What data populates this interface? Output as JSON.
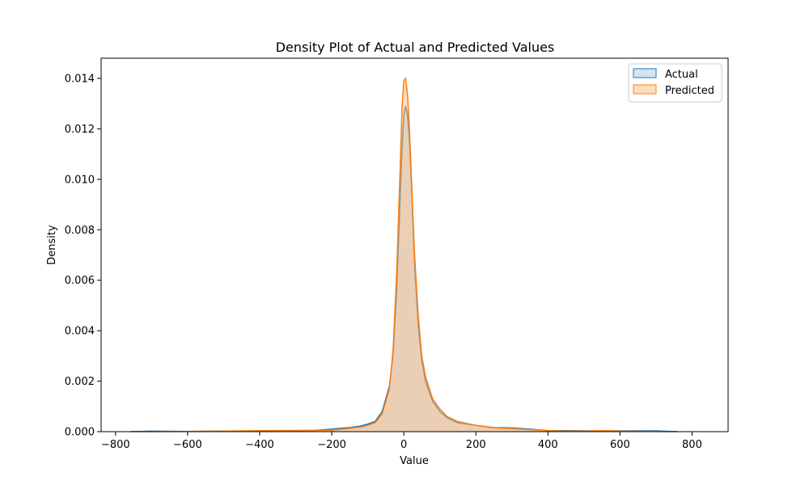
{
  "chart_data": {
    "type": "area",
    "title": "Density Plot of Actual and Predicted Values",
    "xlabel": "Value",
    "ylabel": "Density",
    "xlim": [
      -840,
      900
    ],
    "ylim": [
      0,
      0.0148
    ],
    "xticks": [
      -800,
      -600,
      -400,
      -200,
      0,
      200,
      400,
      600,
      800
    ],
    "xtick_labels": [
      "−800",
      "−600",
      "−400",
      "−200",
      "0",
      "200",
      "400",
      "600",
      "800"
    ],
    "yticks": [
      0,
      0.002,
      0.004,
      0.006,
      0.008,
      0.01,
      0.012,
      0.014
    ],
    "ytick_labels": [
      "0.000",
      "0.002",
      "0.004",
      "0.006",
      "0.008",
      "0.010",
      "0.012",
      "0.014"
    ],
    "grid": false,
    "legend": "top-right",
    "series": [
      {
        "name": "Actual",
        "color": "#1f77b4",
        "fill": "#aec7e8",
        "x": [
          -760,
          -700,
          -600,
          -500,
          -400,
          -300,
          -250,
          -200,
          -180,
          -150,
          -120,
          -100,
          -80,
          -60,
          -40,
          -30,
          -20,
          -10,
          -5,
          0,
          5,
          10,
          15,
          20,
          25,
          30,
          40,
          50,
          60,
          80,
          100,
          120,
          150,
          200,
          250,
          300,
          350,
          400,
          450,
          500,
          600,
          700,
          760
        ],
        "y": [
          0,
          2e-05,
          1e-05,
          2e-05,
          3e-05,
          4e-05,
          5e-05,
          0.0001,
          0.00013,
          0.00016,
          0.00022,
          0.0003,
          0.0004,
          0.0008,
          0.0018,
          0.003,
          0.0055,
          0.0093,
          0.0112,
          0.0125,
          0.0129,
          0.0126,
          0.0117,
          0.0102,
          0.0084,
          0.0066,
          0.0042,
          0.0028,
          0.002,
          0.0012,
          0.0008,
          0.00055,
          0.00035,
          0.00025,
          0.00016,
          0.00015,
          0.0001,
          4e-05,
          4e-05,
          3e-05,
          3e-05,
          3e-05,
          0
        ]
      },
      {
        "name": "Predicted",
        "color": "#ff7f0e",
        "fill": "#ffbb78",
        "x": [
          -740,
          -600,
          -500,
          -400,
          -300,
          -250,
          -200,
          -150,
          -120,
          -100,
          -80,
          -60,
          -40,
          -30,
          -20,
          -10,
          -5,
          0,
          5,
          10,
          15,
          20,
          25,
          30,
          40,
          50,
          60,
          80,
          100,
          120,
          150,
          200,
          250,
          300,
          350,
          400,
          450,
          500,
          550,
          600,
          700,
          740
        ],
        "y": [
          0,
          1e-05,
          2e-05,
          4e-05,
          5e-05,
          5e-05,
          6e-05,
          0.00013,
          0.00018,
          0.00025,
          0.00035,
          0.0007,
          0.0017,
          0.0032,
          0.0062,
          0.0105,
          0.0128,
          0.0139,
          0.014,
          0.0134,
          0.0122,
          0.0105,
          0.0087,
          0.007,
          0.0046,
          0.003,
          0.0022,
          0.0013,
          0.0009,
          0.0006,
          0.0004,
          0.00025,
          0.00015,
          0.00012,
          8e-05,
          4e-05,
          2e-05,
          2e-05,
          4e-05,
          2e-05,
          1e-05,
          0
        ]
      }
    ]
  }
}
